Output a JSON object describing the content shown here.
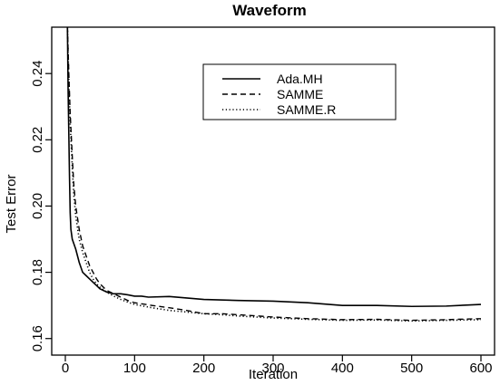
{
  "chart_data": {
    "type": "line",
    "title": "Waveform",
    "xlabel": "Iteration",
    "ylabel": "Test Error",
    "xlim": [
      0,
      600
    ],
    "ylim": [
      0.155,
      0.254
    ],
    "xticks": [
      0,
      100,
      200,
      300,
      400,
      500,
      600
    ],
    "yticks": [
      0.16,
      0.18,
      0.2,
      0.22,
      0.24
    ],
    "grid": false,
    "legend": "top-center",
    "series": [
      {
        "name": "Ada.MH",
        "dash": "solid",
        "points": [
          [
            3,
            0.254
          ],
          [
            4,
            0.235
          ],
          [
            5,
            0.222
          ],
          [
            6,
            0.209
          ],
          [
            7,
            0.198
          ],
          [
            8,
            0.193
          ],
          [
            10,
            0.19
          ],
          [
            15,
            0.187
          ],
          [
            20,
            0.183
          ],
          [
            25,
            0.18
          ],
          [
            30,
            0.179
          ],
          [
            35,
            0.178
          ],
          [
            40,
            0.177
          ],
          [
            45,
            0.176
          ],
          [
            50,
            0.175
          ],
          [
            60,
            0.174
          ],
          [
            70,
            0.1735
          ],
          [
            80,
            0.1735
          ],
          [
            90,
            0.1732
          ],
          [
            100,
            0.1728
          ],
          [
            110,
            0.1728
          ],
          [
            120,
            0.1725
          ],
          [
            150,
            0.1727
          ],
          [
            200,
            0.1718
          ],
          [
            250,
            0.1715
          ],
          [
            300,
            0.1713
          ],
          [
            350,
            0.1708
          ],
          [
            400,
            0.17
          ],
          [
            450,
            0.17
          ],
          [
            500,
            0.1697
          ],
          [
            550,
            0.1698
          ],
          [
            600,
            0.1703
          ]
        ]
      },
      {
        "name": "SAMME",
        "dash": "dashed",
        "points": [
          [
            3,
            0.254
          ],
          [
            5,
            0.24
          ],
          [
            7,
            0.228
          ],
          [
            10,
            0.215
          ],
          [
            12,
            0.207
          ],
          [
            15,
            0.2
          ],
          [
            20,
            0.193
          ],
          [
            25,
            0.188
          ],
          [
            30,
            0.185
          ],
          [
            35,
            0.182
          ],
          [
            40,
            0.18
          ],
          [
            45,
            0.178
          ],
          [
            50,
            0.1765
          ],
          [
            60,
            0.1745
          ],
          [
            70,
            0.1735
          ],
          [
            80,
            0.1725
          ],
          [
            90,
            0.1715
          ],
          [
            100,
            0.1708
          ],
          [
            125,
            0.17
          ],
          [
            150,
            0.1693
          ],
          [
            175,
            0.1685
          ],
          [
            200,
            0.1675
          ],
          [
            225,
            0.1675
          ],
          [
            250,
            0.1672
          ],
          [
            300,
            0.1665
          ],
          [
            350,
            0.166
          ],
          [
            400,
            0.1657
          ],
          [
            450,
            0.1658
          ],
          [
            500,
            0.1655
          ],
          [
            550,
            0.1657
          ],
          [
            600,
            0.166
          ]
        ]
      },
      {
        "name": "SAMME.R",
        "dash": "dotted",
        "points": [
          [
            3,
            0.254
          ],
          [
            5,
            0.238
          ],
          [
            7,
            0.225
          ],
          [
            10,
            0.212
          ],
          [
            12,
            0.204
          ],
          [
            15,
            0.197
          ],
          [
            20,
            0.19
          ],
          [
            25,
            0.186
          ],
          [
            30,
            0.183
          ],
          [
            35,
            0.18
          ],
          [
            40,
            0.178
          ],
          [
            45,
            0.1765
          ],
          [
            50,
            0.1755
          ],
          [
            60,
            0.174
          ],
          [
            70,
            0.1728
          ],
          [
            80,
            0.1718
          ],
          [
            90,
            0.171
          ],
          [
            100,
            0.1703
          ],
          [
            125,
            0.1693
          ],
          [
            150,
            0.1685
          ],
          [
            175,
            0.168
          ],
          [
            200,
            0.1675
          ],
          [
            225,
            0.1672
          ],
          [
            250,
            0.1668
          ],
          [
            300,
            0.1662
          ],
          [
            350,
            0.1658
          ],
          [
            400,
            0.1655
          ],
          [
            450,
            0.1656
          ],
          [
            500,
            0.1653
          ],
          [
            550,
            0.1655
          ],
          [
            600,
            0.1657
          ]
        ]
      }
    ]
  }
}
